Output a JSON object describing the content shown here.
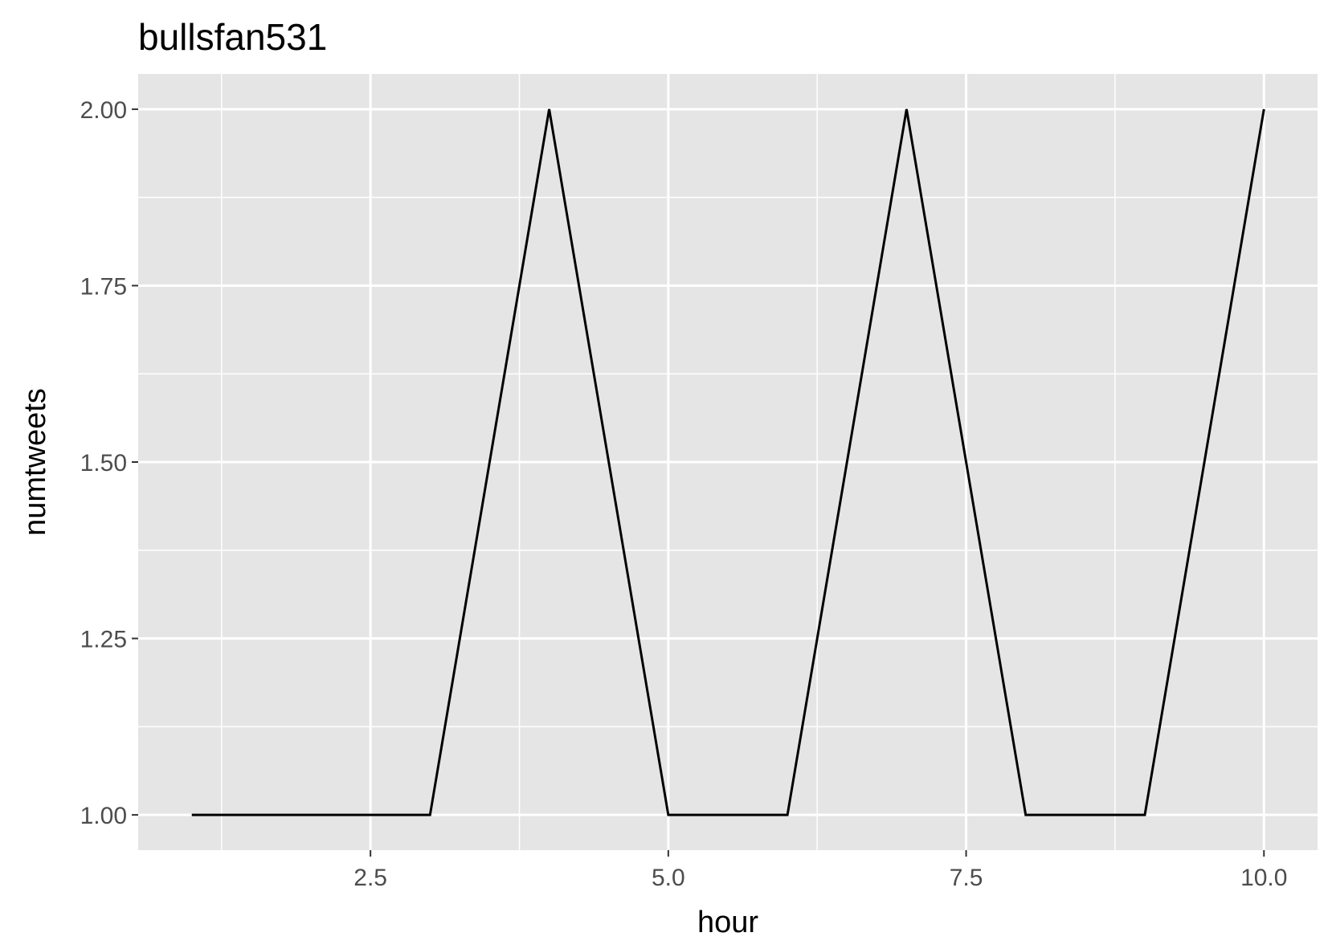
{
  "chart_data": {
    "type": "line",
    "title": "bullsfan531",
    "xlabel": "hour",
    "ylabel": "numtweets",
    "x": [
      1,
      2,
      3,
      4,
      5,
      6,
      7,
      8,
      9,
      10
    ],
    "series": [
      {
        "values": [
          1,
          1,
          1,
          2,
          1,
          1,
          2,
          1,
          1,
          2
        ]
      }
    ],
    "xlim": [
      0.55,
      10.45
    ],
    "ylim": [
      0.95,
      2.05
    ],
    "x_ticks": [
      "2.5",
      "5.0",
      "7.5",
      "10.0"
    ],
    "y_ticks": [
      "1.00",
      "1.25",
      "1.50",
      "1.75",
      "2.00"
    ],
    "grid": true,
    "colors": {
      "panel": "#e5e5e5",
      "grid": "#ffffff",
      "line": "#000000",
      "tick_text": "#4d4d4d"
    }
  }
}
